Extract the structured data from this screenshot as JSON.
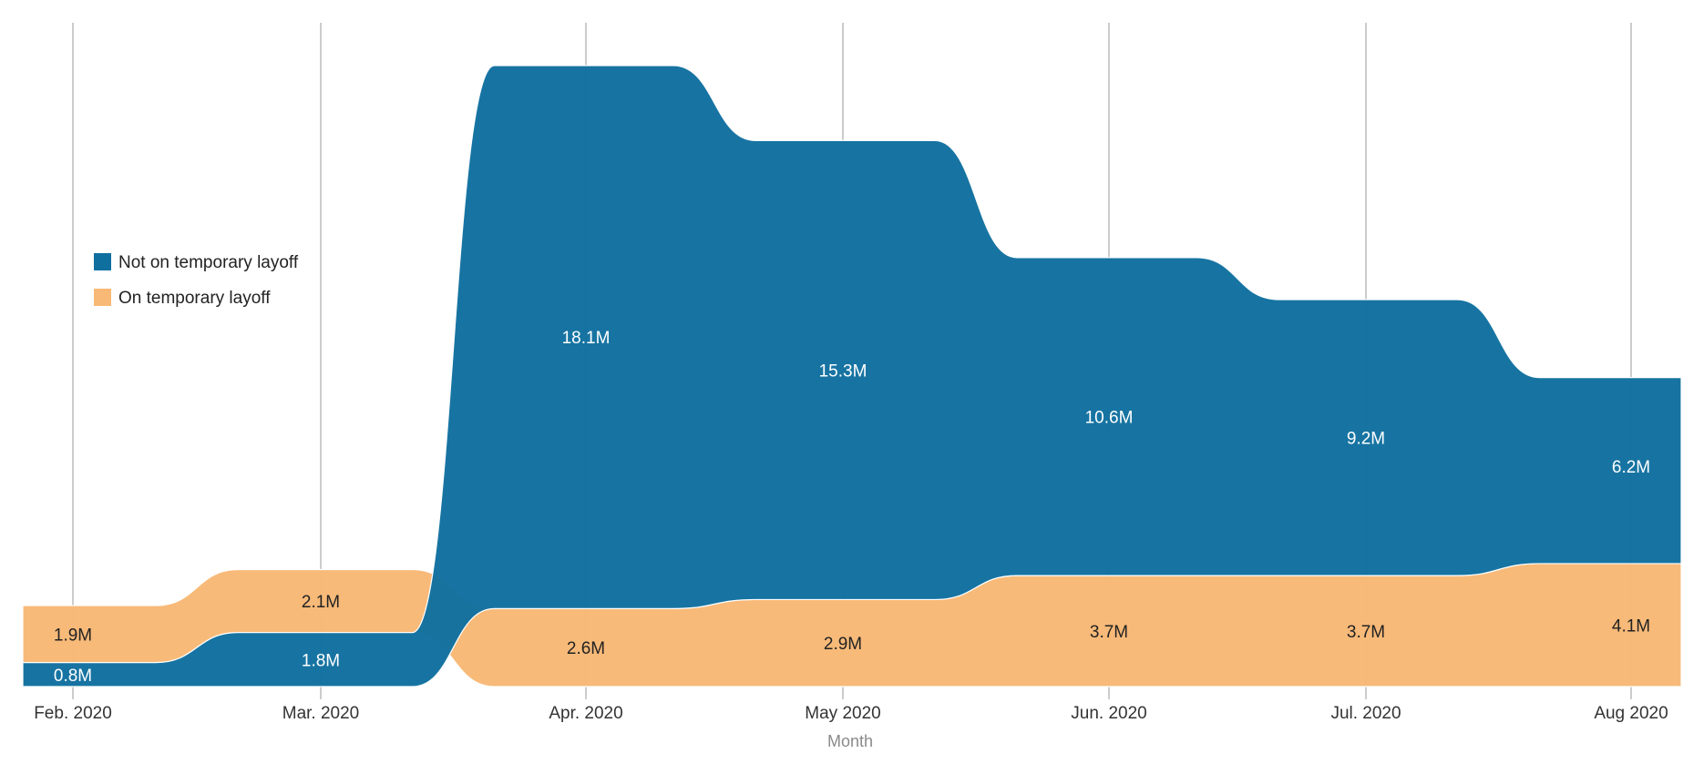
{
  "chart_data": {
    "type": "area",
    "categories": [
      "Feb. 2020",
      "Mar. 2020",
      "Apr. 2020",
      "May 2020",
      "Jun. 2020",
      "Jul. 2020",
      "Aug 2020"
    ],
    "xlabel": "Month",
    "ylabel": "",
    "title": "",
    "grid": "vertical",
    "legend_position": "left-middle",
    "series": [
      {
        "name": "Not on temporary layoff",
        "color": "#0f6f9f",
        "values": [
          0.8,
          1.8,
          18.1,
          15.3,
          10.6,
          9.2,
          6.2
        ],
        "labels": [
          "0.8M",
          "1.8M",
          "18.1M",
          "15.3M",
          "10.6M",
          "9.2M",
          "6.2M"
        ]
      },
      {
        "name": "On temporary layoff",
        "color": "#f8b976",
        "values": [
          1.9,
          2.1,
          2.6,
          2.9,
          3.7,
          3.7,
          4.1
        ],
        "labels": [
          "1.9M",
          "2.1M",
          "2.6M",
          "2.9M",
          "3.7M",
          "3.7M",
          "4.1M"
        ]
      }
    ]
  }
}
